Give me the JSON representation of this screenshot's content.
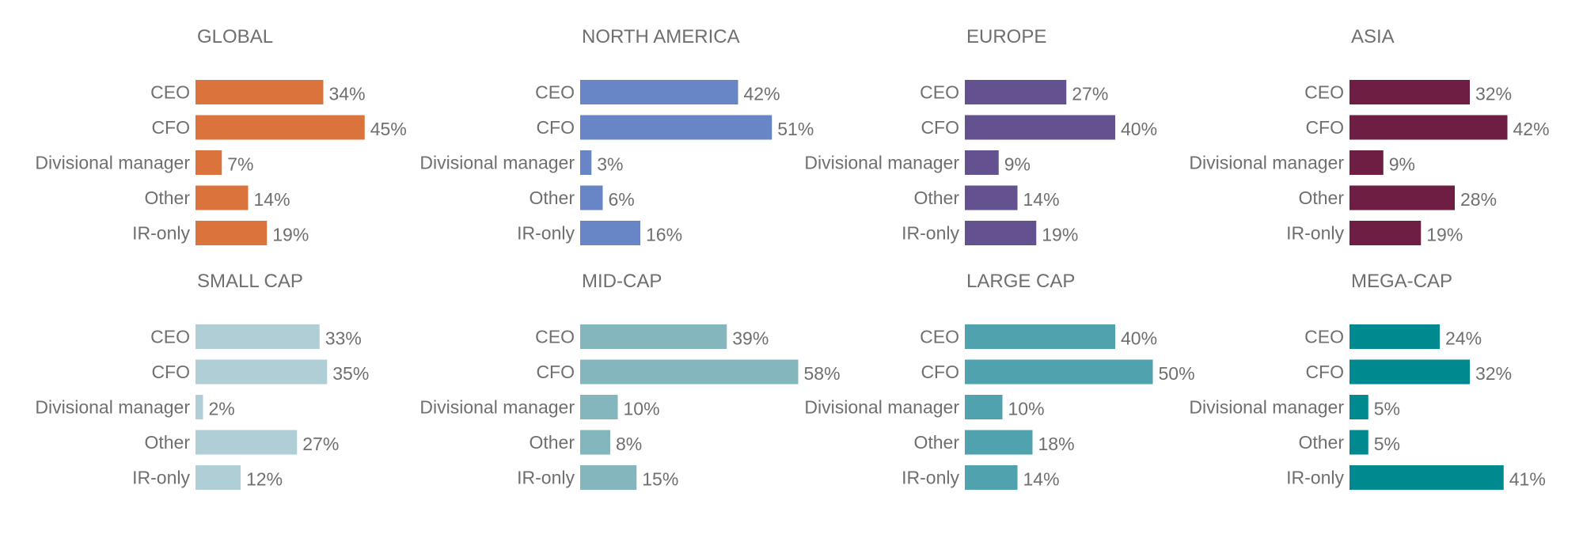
{
  "chart_data": [
    {
      "type": "bar",
      "title": "GLOBAL",
      "categories": [
        "CEO",
        "CFO",
        "Divisional manager",
        "Other",
        "IR-only"
      ],
      "values": [
        34,
        45,
        7,
        14,
        19
      ],
      "value_suffix": "%",
      "color": "#DB743C"
    },
    {
      "type": "bar",
      "title": "NORTH AMERICA",
      "categories": [
        "CEO",
        "CFO",
        "Divisional manager",
        "Other",
        "IR-only"
      ],
      "values": [
        42,
        51,
        3,
        6,
        16
      ],
      "value_suffix": "%",
      "color": "#6885C5"
    },
    {
      "type": "bar",
      "title": "EUROPE",
      "categories": [
        "CEO",
        "CFO",
        "Divisional manager",
        "Other",
        "IR-only"
      ],
      "values": [
        27,
        40,
        9,
        14,
        19
      ],
      "value_suffix": "%",
      "color": "#63528F"
    },
    {
      "type": "bar",
      "title": "ASIA",
      "categories": [
        "CEO",
        "CFO",
        "Divisional manager",
        "Other",
        "IR-only"
      ],
      "values": [
        32,
        42,
        9,
        28,
        19
      ],
      "value_suffix": "%",
      "color": "#6E1E42"
    },
    {
      "type": "bar",
      "title": "SMALL CAP",
      "categories": [
        "CEO",
        "CFO",
        "Divisional manager",
        "Other",
        "IR-only"
      ],
      "values": [
        33,
        35,
        2,
        27,
        12
      ],
      "value_suffix": "%",
      "color": "#AFCED5"
    },
    {
      "type": "bar",
      "title": "MID-CAP",
      "categories": [
        "CEO",
        "CFO",
        "Divisional manager",
        "Other",
        "IR-only"
      ],
      "values": [
        39,
        58,
        10,
        8,
        15
      ],
      "value_suffix": "%",
      "color": "#84B6BE"
    },
    {
      "type": "bar",
      "title": "LARGE CAP",
      "categories": [
        "CEO",
        "CFO",
        "Divisional manager",
        "Other",
        "IR-only"
      ],
      "values": [
        40,
        50,
        10,
        18,
        14
      ],
      "value_suffix": "%",
      "color": "#50A2AE"
    },
    {
      "type": "bar",
      "title": "MEGA-CAP",
      "categories": [
        "CEO",
        "CFO",
        "Divisional manager",
        "Other",
        "IR-only"
      ],
      "values": [
        24,
        32,
        5,
        5,
        41
      ],
      "value_suffix": "%",
      "color": "#00898F"
    }
  ]
}
